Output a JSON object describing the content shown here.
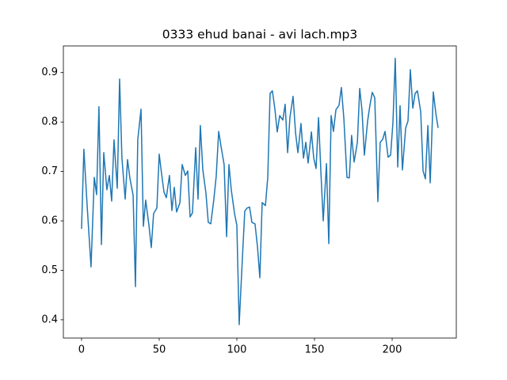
{
  "chart_data": {
    "type": "line",
    "title": "0333 ehud banai - avi lach.mp3",
    "x": [
      0,
      1.5,
      3.6,
      6.1,
      8.2,
      9.7,
      11.2,
      12.8,
      14.3,
      16.3,
      17.9,
      19.4,
      20.9,
      23,
      24.5,
      26,
      28.1,
      29.6,
      31.1,
      33.2,
      34.7,
      36.2,
      38.3,
      39.8,
      41.3,
      43.4,
      44.9,
      46.4,
      48.5,
      50,
      51.5,
      53.1,
      54.6,
      56.6,
      58.2,
      59.7,
      61.2,
      63.3,
      64.8,
      66.8,
      68.4,
      69.9,
      71.4,
      73.5,
      75,
      76.5,
      78.1,
      80.1,
      81.6,
      83.2,
      85.2,
      86.7,
      88.3,
      89.8,
      91.8,
      93.4,
      94.9,
      96.4,
      98.5,
      100,
      101.5,
      103.1,
      105.1,
      106.6,
      108.2,
      109.7,
      111.7,
      113.3,
      114.8,
      116.3,
      118.4,
      119.9,
      121.4,
      122.9,
      124.5,
      126,
      127.6,
      129.6,
      131.1,
      132.7,
      134.2,
      136.2,
      137.8,
      139.3,
      141.3,
      142.9,
      144.4,
      145.9,
      148,
      149.5,
      151,
      152.6,
      154.1,
      155.6,
      157.7,
      159.2,
      160.7,
      162.2,
      163.8,
      165.8,
      167.3,
      168.9,
      170.9,
      172.4,
      173.9,
      175.5,
      177.6,
      179.1,
      180.6,
      182.1,
      184.2,
      185.7,
      187.2,
      188.8,
      190.8,
      192.3,
      193.9,
      195.4,
      197.4,
      199,
      200.5,
      202,
      203.6,
      205.1,
      206.6,
      208.7,
      210.2,
      211.7,
      213.3,
      214.8,
      216.3,
      218.4,
      219.9,
      221.4,
      223,
      224.5,
      226.5,
      228.1,
      229.6
    ],
    "values": [
      0.584,
      0.745,
      0.631,
      0.507,
      0.688,
      0.653,
      0.831,
      0.552,
      0.738,
      0.663,
      0.692,
      0.64,
      0.764,
      0.666,
      0.887,
      0.727,
      0.644,
      0.724,
      0.687,
      0.652,
      0.467,
      0.764,
      0.826,
      0.589,
      0.642,
      0.591,
      0.546,
      0.615,
      0.626,
      0.735,
      0.696,
      0.658,
      0.647,
      0.692,
      0.621,
      0.668,
      0.618,
      0.636,
      0.714,
      0.692,
      0.701,
      0.608,
      0.616,
      0.748,
      0.644,
      0.793,
      0.703,
      0.656,
      0.597,
      0.594,
      0.644,
      0.69,
      0.781,
      0.751,
      0.714,
      0.568,
      0.714,
      0.663,
      0.615,
      0.591,
      0.39,
      0.495,
      0.62,
      0.626,
      0.628,
      0.597,
      0.594,
      0.547,
      0.485,
      0.637,
      0.631,
      0.688,
      0.858,
      0.863,
      0.826,
      0.78,
      0.813,
      0.804,
      0.836,
      0.738,
      0.81,
      0.852,
      0.778,
      0.738,
      0.797,
      0.727,
      0.759,
      0.717,
      0.78,
      0.727,
      0.706,
      0.809,
      0.7,
      0.6,
      0.716,
      0.554,
      0.813,
      0.781,
      0.825,
      0.834,
      0.87,
      0.807,
      0.688,
      0.687,
      0.773,
      0.719,
      0.759,
      0.868,
      0.823,
      0.733,
      0.802,
      0.834,
      0.86,
      0.849,
      0.639,
      0.759,
      0.765,
      0.781,
      0.729,
      0.733,
      0.799,
      0.929,
      0.709,
      0.833,
      0.703,
      0.788,
      0.802,
      0.906,
      0.828,
      0.858,
      0.863,
      0.82,
      0.701,
      0.685,
      0.793,
      0.677,
      0.861,
      0.818,
      0.788
    ],
    "color": "#1f77b4",
    "xlim": [
      -11.7,
      241.3
    ],
    "xticks": [
      0,
      50,
      100,
      150,
      200
    ],
    "ylim": [
      0.363,
      0.954
    ],
    "yticks": [
      0.4,
      0.5,
      0.6,
      0.7,
      0.8,
      0.9
    ],
    "grid": false
  }
}
